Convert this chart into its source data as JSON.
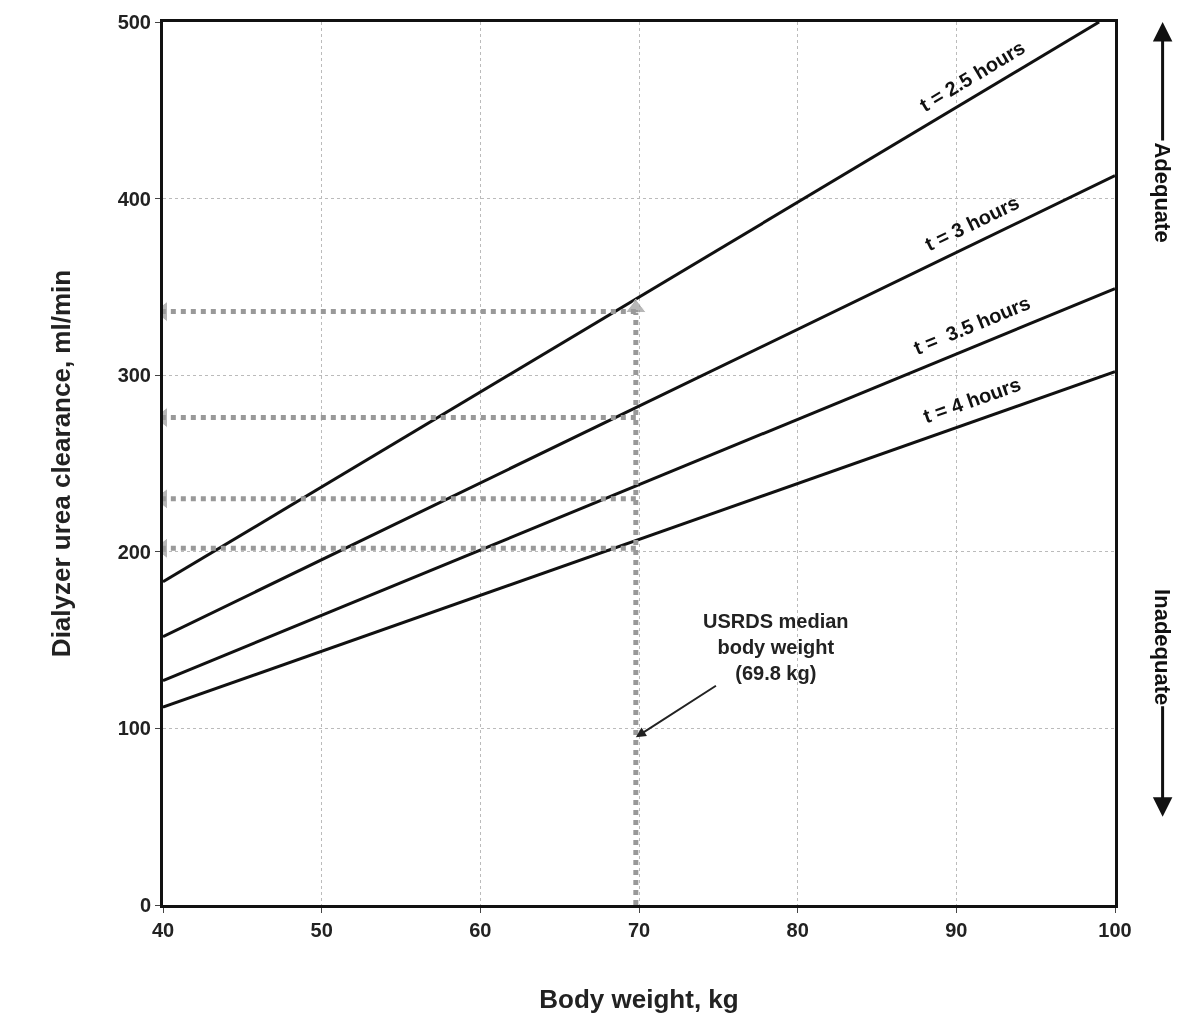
{
  "chart_data": {
    "type": "line",
    "xlabel": "Body weight, kg",
    "ylabel": "Dialyzer urea clearance, ml/min",
    "x": [
      40,
      100
    ],
    "series": [
      {
        "name": "t = 2.5 hours",
        "color": "#111111",
        "x": [
          40,
          99
        ],
        "values": [
          183,
          500
        ]
      },
      {
        "name": "t = 3 hours",
        "color": "#111111",
        "values": [
          152,
          413
        ]
      },
      {
        "name": "t =  3.5 hours",
        "color": "#111111",
        "values": [
          127,
          349
        ]
      },
      {
        "name": "t = 4 hours",
        "color": "#111111",
        "values": [
          112,
          302
        ]
      },
      {
        "x": [
          69.8,
          69.8
        ],
        "values": [
          0,
          338
        ],
        "color": "#999999",
        "line_style": "dotted",
        "marker": "triangle"
      },
      {
        "x": [
          69.8,
          40
        ],
        "values": [
          336,
          336
        ],
        "color": "#999999",
        "line_style": "dotted",
        "marker": "triangle"
      },
      {
        "x": [
          69.8,
          40
        ],
        "values": [
          276,
          276
        ],
        "color": "#999999",
        "line_style": "dotted",
        "marker": "triangle"
      },
      {
        "x": [
          69.8,
          40
        ],
        "values": [
          230,
          230
        ],
        "color": "#999999",
        "line_style": "dotted",
        "marker": "triangle"
      },
      {
        "x": [
          69.8,
          40
        ],
        "values": [
          202,
          202
        ],
        "color": "#999999",
        "line_style": "dotted",
        "marker": "triangle"
      }
    ],
    "xlim": [
      40,
      100
    ],
    "xticks": [
      40,
      50,
      60,
      70,
      80,
      90,
      100
    ],
    "ylim": [
      0,
      500
    ],
    "yticks": [
      0,
      100,
      200,
      300,
      400,
      500
    ],
    "grid": true,
    "legend": false,
    "line_style": "solid",
    "marker": "none",
    "annotations": [
      {
        "text": "USRDS median\nbody weight\n(69.8 kg)",
        "x": 69.8,
        "y": 95
      },
      "Adequate",
      "Inadequate"
    ]
  }
}
